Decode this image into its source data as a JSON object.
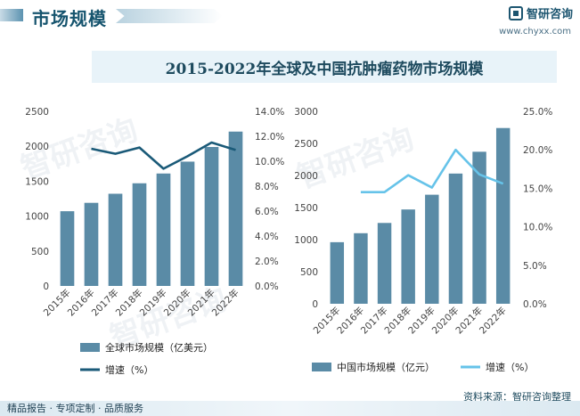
{
  "header": {
    "title": "市场规模",
    "brand": "智研咨询",
    "url": "www.chyxx.com"
  },
  "banner": {
    "title": "2015-2022年全球及中国抗肿瘤药物市场规模"
  },
  "footer": {
    "services": "精品报告 · 专项定制 · 品质服务",
    "source": "资料来源：智研咨询整理"
  },
  "colors": {
    "bar": "#5a8ba6",
    "global_line": "#1a5a78",
    "china_line": "#66c3e9"
  },
  "chart_data": [
    {
      "type": "bar",
      "name": "global",
      "categories": [
        "2015年",
        "2016年",
        "2017年",
        "2018年",
        "2019年",
        "2020年",
        "2021年",
        "2022年"
      ],
      "series": [
        {
          "name": "全球市场规模（亿美元）",
          "type": "bar",
          "axis": "left",
          "values": [
            1070,
            1190,
            1320,
            1470,
            1610,
            1780,
            1990,
            2210
          ]
        },
        {
          "name": "增速（%）",
          "type": "line",
          "axis": "right",
          "values": [
            null,
            11.0,
            10.6,
            11.1,
            9.4,
            10.4,
            11.5,
            10.9
          ]
        }
      ],
      "ylim_left": [
        0,
        2500
      ],
      "yticks_left": [
        "0",
        "500",
        "1000",
        "1500",
        "2000",
        "2500"
      ],
      "ylim_right": [
        0,
        14
      ],
      "yticks_right": [
        "0.0%",
        "2.0%",
        "4.0%",
        "6.0%",
        "8.0%",
        "10.0%",
        "12.0%",
        "14.0%"
      ],
      "legend": [
        "全球市场规模（亿美元）",
        "增速（%）"
      ]
    },
    {
      "type": "bar",
      "name": "china",
      "categories": [
        "2015年",
        "2016年",
        "2017年",
        "2018年",
        "2019年",
        "2020年",
        "2021年",
        "2022年"
      ],
      "series": [
        {
          "name": "中国市场规模（亿元）",
          "type": "bar",
          "axis": "left",
          "values": [
            960,
            1100,
            1260,
            1470,
            1700,
            2030,
            2370,
            2740
          ]
        },
        {
          "name": "增速（%）",
          "type": "line",
          "axis": "right",
          "values": [
            null,
            14.5,
            14.5,
            16.7,
            15.1,
            20.0,
            16.8,
            15.6
          ]
        }
      ],
      "ylim_left": [
        0,
        3000
      ],
      "yticks_left": [
        "0",
        "500",
        "1000",
        "1500",
        "2000",
        "2500",
        "3000"
      ],
      "ylim_right": [
        0,
        25
      ],
      "yticks_right": [
        "0.0%",
        "5.0%",
        "10.0%",
        "15.0%",
        "20.0%",
        "25.0%"
      ],
      "legend": [
        "中国市场规模（亿元）",
        "增速（%）"
      ]
    }
  ]
}
